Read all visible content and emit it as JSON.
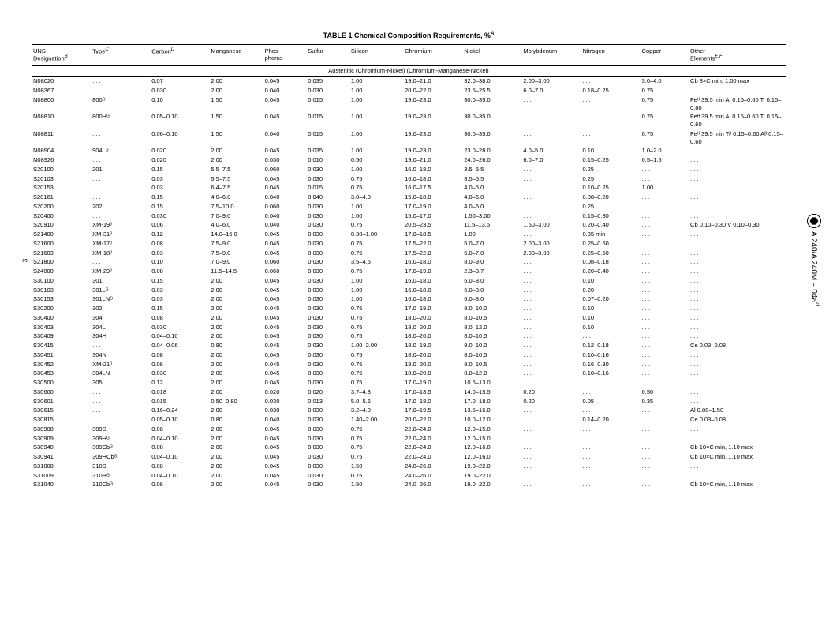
{
  "title": "TABLE 1  Chemical Composition Requirements, %",
  "title_sup": "A",
  "page_number": "3",
  "sidebar_text": "A 240/A 240M – 04a",
  "sidebar_sup": "ε1",
  "headers": [
    {
      "label": "UNS\nDesignation",
      "sup": "B"
    },
    {
      "label": "Type",
      "sup": "C"
    },
    {
      "label": "Carbon",
      "sup": "D"
    },
    {
      "label": "Manganese",
      "sup": ""
    },
    {
      "label": "Phos-\nphorus",
      "sup": ""
    },
    {
      "label": "Sulfur",
      "sup": ""
    },
    {
      "label": "Silicon",
      "sup": ""
    },
    {
      "label": "Chromium",
      "sup": ""
    },
    {
      "label": "Nickel",
      "sup": ""
    },
    {
      "label": "Molybdenum",
      "sup": ""
    },
    {
      "label": "Nitrogen",
      "sup": ""
    },
    {
      "label": "Copper",
      "sup": ""
    },
    {
      "label": "Other\nElements",
      "sup": "E,F"
    }
  ],
  "section_label": "Austenitic (Chromium-Nickel) (Chromium-Manganese-Nickel)",
  "rows": [
    {
      "uns": "N08020",
      "type": ". . .",
      "c": "0.07",
      "mn": "2.00",
      "p": "0.045",
      "s": "0.035",
      "si": "1.00",
      "cr": "19.0–21.0",
      "ni": "32.0–38.0",
      "mo": "2.00–3.00",
      "n": ". . .",
      "cu": "3.0–4.0",
      "other": "Cb 8×C min, 1.00 max"
    },
    {
      "uns": "N08367",
      "type": ". . .",
      "c": "0.030",
      "mn": "2.00",
      "p": "0.040",
      "s": "0.030",
      "si": "1.00",
      "cr": "20.0–22.0",
      "ni": "23.5–25.5",
      "mo": "6.0–7.0",
      "n": "0.18–0.25",
      "cu": "0.75",
      "other": ". . ."
    },
    {
      "uns": "N08800",
      "type": "800ᴳ",
      "c": "0.10",
      "mn": "1.50",
      "p": "0.045",
      "s": "0.015",
      "si": "1.00",
      "cr": "19.0–23.0",
      "ni": "30.0–35.0",
      "mo": ". . .",
      "n": ". . .",
      "cu": "0.75",
      "other": "Feᴴ 39.5 min Al 0.15–0.60 Ti 0.15–0.60"
    },
    {
      "uns": "N08810",
      "type": "800Hᴳ",
      "c": "0.05–0.10",
      "mn": "1.50",
      "p": "0.045",
      "s": "0.015",
      "si": "1.00",
      "cr": "19.0–23.0",
      "ni": "30.0–35.0",
      "mo": ". . .",
      "n": ". . .",
      "cu": "0.75",
      "other": "Feᴴ 39.5 min Al 0.15–0.60 Ti 0.15–0.60"
    },
    {
      "uns": "N08811",
      "type": ". . .",
      "c": "0.06–0.10",
      "mn": "1.50",
      "p": "0.040",
      "s": "0.015",
      "si": "1.00",
      "cr": "19.0–23.0",
      "ni": "30.0–35.0",
      "mo": ". . .",
      "n": ". . .",
      "cu": "0.75",
      "other": "Feᴴ 39.5 min Tiᴵ 0.15–0.60 Alᴵ 0.15–0.60"
    },
    {
      "uns": "N08904",
      "type": "904Lᴳ",
      "c": "0.020",
      "mn": "2.00",
      "p": "0.045",
      "s": "0.035",
      "si": "1.00",
      "cr": "19.0–23.0",
      "ni": "23.0–28.0",
      "mo": "4.0–5.0",
      "n": "0.10",
      "cu": "1.0–2.0",
      "other": ". . ."
    },
    {
      "uns": "N08926",
      "type": ". . .",
      "c": "0.020",
      "mn": "2.00",
      "p": "0.030",
      "s": "0.010",
      "si": "0.50",
      "cr": "19.0–21.0",
      "ni": "24.0–26.0",
      "mo": "6.0–7.0",
      "n": "0.15–0.25",
      "cu": "0.5–1.5",
      "other": ". . ."
    },
    {
      "uns": "S20100",
      "type": "201",
      "c": "0.15",
      "mn": "5.5–7.5",
      "p": "0.060",
      "s": "0.030",
      "si": "1.00",
      "cr": "16.0–18.0",
      "ni": "3.5–5.5",
      "mo": ". . .",
      "n": "0.25",
      "cu": ". . .",
      "other": ". . ."
    },
    {
      "uns": "S20103",
      "type": ". . .",
      "c": "0.03",
      "mn": "5.5–7.5",
      "p": "0.045",
      "s": "0.030",
      "si": "0.75",
      "cr": "16.0–18.0",
      "ni": "3.5–5.5",
      "mo": ". . .",
      "n": "0.25",
      "cu": ". . .",
      "other": ". . ."
    },
    {
      "uns": "S20153",
      "type": ". . .",
      "c": "0.03",
      "mn": "6.4–7.5",
      "p": "0.045",
      "s": "0.015",
      "si": "0.75",
      "cr": "16.0–17.5",
      "ni": "4.0–5.0",
      "mo": ". . .",
      "n": "0.10–0.25",
      "cu": "1.00",
      "other": ". . ."
    },
    {
      "uns": "S20161",
      "type": ". . .",
      "c": "0.15",
      "mn": "4.0–6.0",
      "p": "0.040",
      "s": "0.040",
      "si": "3.0–4.0",
      "cr": "15.0–18.0",
      "ni": "4.0–6.0",
      "mo": ". . .",
      "n": "0.08–0.20",
      "cu": ". . .",
      "other": ". . ."
    },
    {
      "uns": "S20200",
      "type": "202",
      "c": "0.15",
      "mn": "7.5–10.0",
      "p": "0.060",
      "s": "0.030",
      "si": "1.00",
      "cr": "17.0–19.0",
      "ni": "4.0–6.0",
      "mo": ". . .",
      "n": "0.25",
      "cu": ". . .",
      "other": ". . ."
    },
    {
      "uns": "S20400",
      "type": ". . .",
      "c": "0.030",
      "mn": "7.0–9.0",
      "p": "0.040",
      "s": "0.030",
      "si": "1.00",
      "cr": "15.0–17.0",
      "ni": "1.50–3.00",
      "mo": ". . .",
      "n": "0.15–0.30",
      "cu": ". . .",
      "other": ". . ."
    },
    {
      "uns": "S20910",
      "type": "XM-19ᴶ",
      "c": "0.06",
      "mn": "4.0–6.0",
      "p": "0.040",
      "s": "0.030",
      "si": "0.75",
      "cr": "20.5–23.5",
      "ni": "11.5–13.5",
      "mo": "1.50–3.00",
      "n": "0.20–0.40",
      "cu": ". . .",
      "other": "Cb 0.10–0.30 V 0.10–0.30"
    },
    {
      "uns": "S21400",
      "type": "XM-31ᴶ",
      "c": "0.12",
      "mn": "14.0–16.0",
      "p": "0.045",
      "s": "0.030",
      "si": "0.30–1.00",
      "cr": "17.0–18.5",
      "ni": "1.00",
      "mo": ". . .",
      "n": "0.35 min",
      "cu": ". . .",
      "other": ". . ."
    },
    {
      "uns": "S21600",
      "type": "XM-17ᴶ",
      "c": "0.08",
      "mn": "7.5–9.0",
      "p": "0.045",
      "s": "0.030",
      "si": "0.75",
      "cr": "17.5–22.0",
      "ni": "5.0–7.0",
      "mo": "2.00–3.00",
      "n": "0.25–0.50",
      "cu": ". . .",
      "other": ". . ."
    },
    {
      "uns": "S21603",
      "type": "XM-18ᴶ",
      "c": "0.03",
      "mn": "7.5–9.0",
      "p": "0.045",
      "s": "0.030",
      "si": "0.75",
      "cr": "17.5–22.0",
      "ni": "5.0–7.0",
      "mo": "2.00–3.00",
      "n": "0.25–0.50",
      "cu": ". . .",
      "other": ". . ."
    },
    {
      "uns": "S21800",
      "type": ". . .",
      "c": "0.10",
      "mn": "7.0–9.0",
      "p": "0.060",
      "s": "0.030",
      "si": "3.5–4.5",
      "cr": "16.0–18.0",
      "ni": "8.0–9.0",
      "mo": ". . .",
      "n": "0.08–0.18",
      "cu": ". . .",
      "other": ". . ."
    },
    {
      "uns": "S24000",
      "type": "XM-29ᴶ",
      "c": "0.08",
      "mn": "11.5–14.5",
      "p": "0.060",
      "s": "0.030",
      "si": "0.75",
      "cr": "17.0–19.0",
      "ni": "2.3–3.7",
      "mo": ". . .",
      "n": "0.20–0.40",
      "cu": ". . .",
      "other": ". . ."
    },
    {
      "uns": "S30100",
      "type": "301",
      "c": "0.15",
      "mn": "2.00",
      "p": "0.045",
      "s": "0.030",
      "si": "1.00",
      "cr": "16.0–18.0",
      "ni": "6.0–8.0",
      "mo": ". . .",
      "n": "0.10",
      "cu": ". . .",
      "other": ". . ."
    },
    {
      "uns": "S30103",
      "type": "301Lᴳ",
      "c": "0.03",
      "mn": "2.00",
      "p": "0.045",
      "s": "0.030",
      "si": "1.00",
      "cr": "16.0–18.0",
      "ni": "6.0–8.0",
      "mo": ". . .",
      "n": "0.20",
      "cu": ". . .",
      "other": ". . ."
    },
    {
      "uns": "S30153",
      "type": "301LNᴳ",
      "c": "0.03",
      "mn": "2.00",
      "p": "0.045",
      "s": "0.030",
      "si": "1.00",
      "cr": "16.0–18.0",
      "ni": "6.0–8.0",
      "mo": ". . .",
      "n": "0.07–0.20",
      "cu": ". . .",
      "other": ". . ."
    },
    {
      "uns": "S30200",
      "type": "302",
      "c": "0.15",
      "mn": "2.00",
      "p": "0.045",
      "s": "0.030",
      "si": "0.75",
      "cr": "17.0–19.0",
      "ni": "8.0–10.0",
      "mo": ". . .",
      "n": "0.10",
      "cu": ". . .",
      "other": ". . ."
    },
    {
      "uns": "S30400",
      "type": "304",
      "c": "0.08",
      "mn": "2.00",
      "p": "0.045",
      "s": "0.030",
      "si": "0.75",
      "cr": "18.0–20.0",
      "ni": "8.0–10.5",
      "mo": ". . .",
      "n": "0.10",
      "cu": ". . .",
      "other": ". . ."
    },
    {
      "uns": "S30403",
      "type": "304L",
      "c": "0.030",
      "mn": "2.00",
      "p": "0.045",
      "s": "0.030",
      "si": "0.75",
      "cr": "18.0–20.0",
      "ni": "8.0–12.0",
      "mo": ". . .",
      "n": "0.10",
      "cu": ". . .",
      "other": ". . ."
    },
    {
      "uns": "S30409",
      "type": "304H",
      "c": "0.04–0.10",
      "mn": "2.00",
      "p": "0.045",
      "s": "0.030",
      "si": "0.75",
      "cr": "18.0–20.0",
      "ni": "8.0–10.5",
      "mo": ". . .",
      "n": ". . .",
      "cu": ". . .",
      "other": ". . ."
    },
    {
      "uns": "S30415",
      "type": ". . .",
      "c": "0.04–0.06",
      "mn": "0.80",
      "p": "0.045",
      "s": "0.030",
      "si": "1.00–2.00",
      "cr": "18.0–19.0",
      "ni": "9.0–10.0",
      "mo": ". . .",
      "n": "0.12–0.18",
      "cu": ". . .",
      "other": "Ce 0.03–0.08"
    },
    {
      "uns": "S30451",
      "type": "304N",
      "c": "0.08",
      "mn": "2.00",
      "p": "0.045",
      "s": "0.030",
      "si": "0.75",
      "cr": "18.0–20.0",
      "ni": "8.0–10.5",
      "mo": ". . .",
      "n": "0.10–0.16",
      "cu": ". . .",
      "other": ". . ."
    },
    {
      "uns": "S30452",
      "type": "XM-21ᴶ",
      "c": "0.08",
      "mn": "2.00",
      "p": "0.045",
      "s": "0.030",
      "si": "0.75",
      "cr": "18.0–20.0",
      "ni": "8.0–10.5",
      "mo": ". . .",
      "n": "0.16–0.30",
      "cu": ". . .",
      "other": ". . ."
    },
    {
      "uns": "S30453",
      "type": "304LN",
      "c": "0.030",
      "mn": "2.00",
      "p": "0.045",
      "s": "0.030",
      "si": "0.75",
      "cr": "18.0–20.0",
      "ni": "8.0–12.0",
      "mo": ". . .",
      "n": "0.10–0.16",
      "cu": ". . .",
      "other": ". . ."
    },
    {
      "uns": "S30500",
      "type": "305",
      "c": "0.12",
      "mn": "2.00",
      "p": "0.045",
      "s": "0.030",
      "si": "0.75",
      "cr": "17.0–19.0",
      "ni": "10.5–13.0",
      "mo": ". . .",
      "n": ". . .",
      "cu": ". . .",
      "other": ". . ."
    },
    {
      "uns": "S30600",
      "type": ". . .",
      "c": "0.018",
      "mn": "2.00",
      "p": "0.020",
      "s": "0.020",
      "si": "3.7–4.3",
      "cr": "17.0–18.5",
      "ni": "14.0–15.5",
      "mo": "0.20",
      "n": ". . .",
      "cu": "0.50",
      "other": ". . ."
    },
    {
      "uns": "S30601",
      "type": ". . .",
      "c": "0.015",
      "mn": "0.50–0.80",
      "p": "0.030",
      "s": "0.013",
      "si": "5.0–5.6",
      "cr": "17.0–18.0",
      "ni": "17.0–18.0",
      "mo": "0.20",
      "n": "0.05",
      "cu": "0.35",
      "other": ". . ."
    },
    {
      "uns": "S30615",
      "type": ". . .",
      "c": "0.16–0.24",
      "mn": "2.00",
      "p": "0.030",
      "s": "0.030",
      "si": "3.2–4.0",
      "cr": "17.0–19.5",
      "ni": "13.5–16.0",
      "mo": ". . .",
      "n": ". . .",
      "cu": ". . .",
      "other": "Al 0.80–1.50"
    },
    {
      "uns": "S30815",
      "type": ". . .",
      "c": "0.05–0.10",
      "mn": "0.80",
      "p": "0.040",
      "s": "0.030",
      "si": "1.40–2.00",
      "cr": "20.0–22.0",
      "ni": "10.0–12.0",
      "mo": ". . .",
      "n": "0.14–0.20",
      "cu": ". . .",
      "other": "Ce 0.03–0.08"
    },
    {
      "uns": "S30908",
      "type": "309S",
      "c": "0.08",
      "mn": "2.00",
      "p": "0.045",
      "s": "0.030",
      "si": "0.75",
      "cr": "22.0–24.0",
      "ni": "12.0–15.0",
      "mo": ". . .",
      "n": ". . .",
      "cu": ". . .",
      "other": ". . ."
    },
    {
      "uns": "S30909",
      "type": "309Hᴳ",
      "c": "0.04–0.10",
      "mn": "2.00",
      "p": "0.045",
      "s": "0.030",
      "si": "0.75",
      "cr": "22.0–24.0",
      "ni": "12.0–15.0",
      "mo": ". . .",
      "n": ". . .",
      "cu": ". . .",
      "other": ". . ."
    },
    {
      "uns": "S30940",
      "type": "309Cbᴳ",
      "c": "0.08",
      "mn": "2.00",
      "p": "0.045",
      "s": "0.030",
      "si": "0.75",
      "cr": "22.0–24.0",
      "ni": "12.0–16.0",
      "mo": ". . .",
      "n": ". . .",
      "cu": ". . .",
      "other": "Cb 10×C min, 1.10 max"
    },
    {
      "uns": "S30941",
      "type": "309HCbᴳ",
      "c": "0.04–0.10",
      "mn": "2.00",
      "p": "0.045",
      "s": "0.030",
      "si": "0.75",
      "cr": "22.0–24.0",
      "ni": "12.0–16.0",
      "mo": ". . .",
      "n": ". . .",
      "cu": ". . .",
      "other": "Cb 10×C min, 1.10 max"
    },
    {
      "uns": "S31008",
      "type": "310S",
      "c": "0.08",
      "mn": "2.00",
      "p": "0.045",
      "s": "0.030",
      "si": "1.50",
      "cr": "24.0–26.0",
      "ni": "19.0–22.0",
      "mo": ". . .",
      "n": ". . .",
      "cu": ". . .",
      "other": ". . ."
    },
    {
      "uns": "S31009",
      "type": "310Hᴳ",
      "c": "0.04–0.10",
      "mn": "2.00",
      "p": "0.045",
      "s": "0.030",
      "si": "0.75",
      "cr": "24.0–26.0",
      "ni": "19.0–22.0",
      "mo": ". . .",
      "n": ". . .",
      "cu": ". . .",
      "other": ". . ."
    },
    {
      "uns": "S31040",
      "type": "310Cbᴳ",
      "c": "0.08",
      "mn": "2.00",
      "p": "0.045",
      "s": "0.030",
      "si": "1.50",
      "cr": "24.0–26.0",
      "ni": "19.0–22.0",
      "mo": ". . .",
      "n": ". . .",
      "cu": ". . .",
      "other": "Cb 10×C min, 1.10 max"
    }
  ]
}
